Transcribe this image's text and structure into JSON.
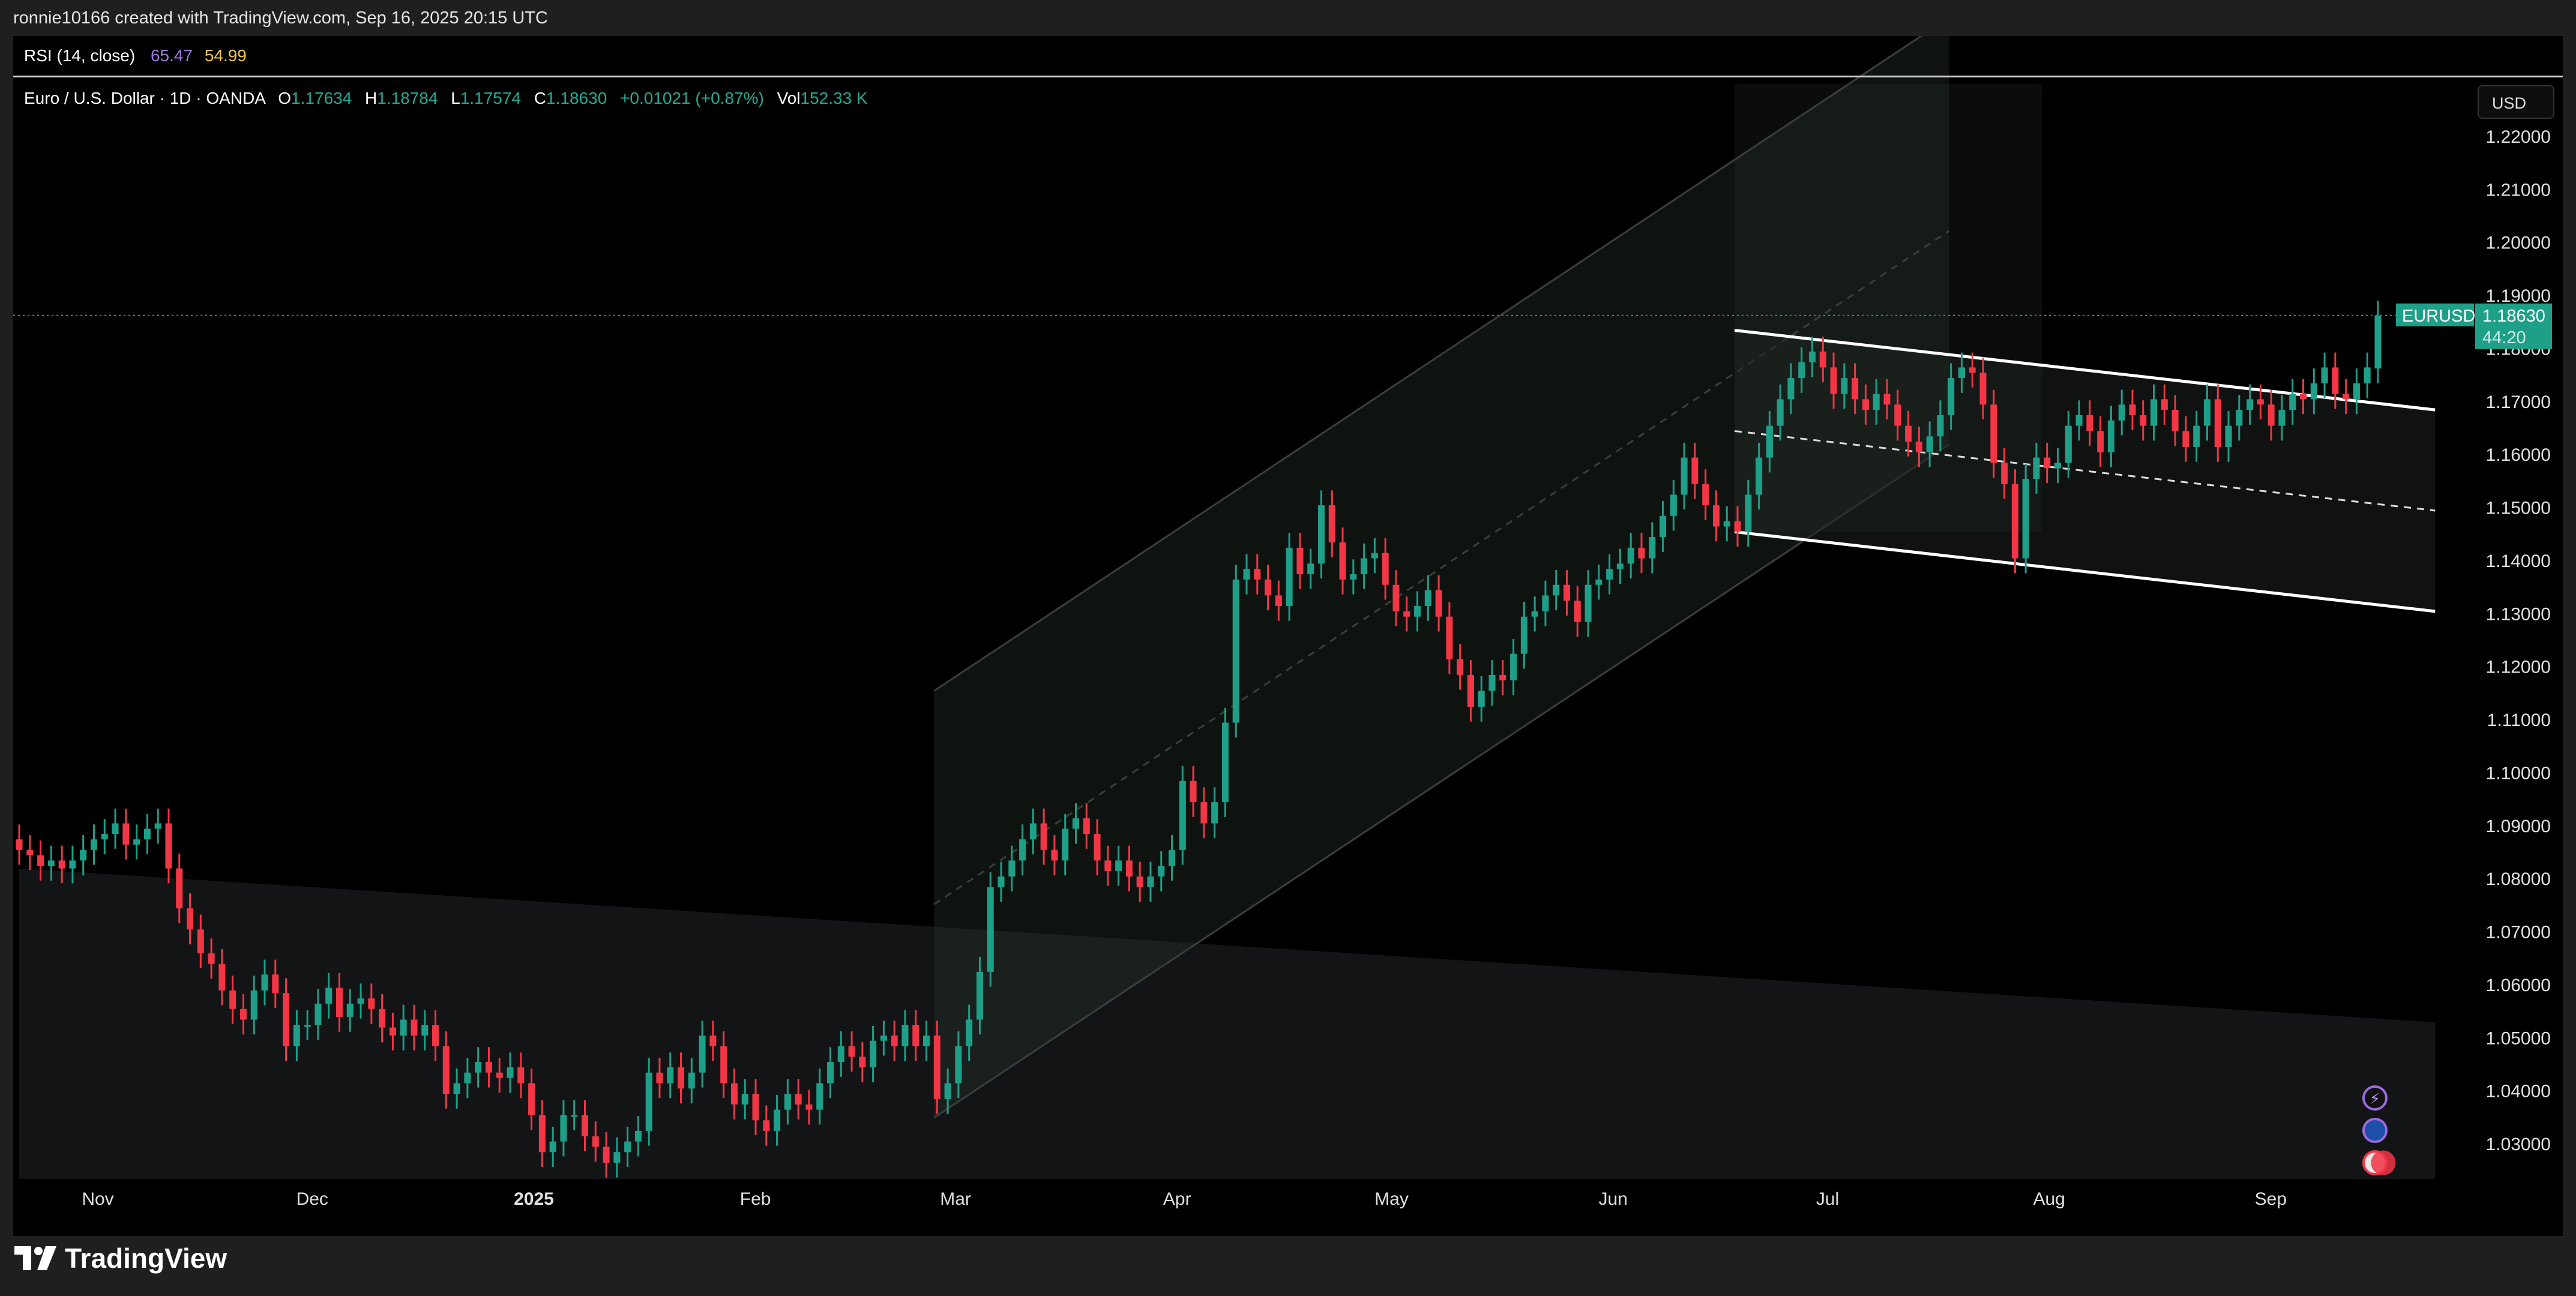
{
  "header": {
    "attribution": "ronnie10166 created with TradingView.com, Sep 16, 2025 20:15 UTC"
  },
  "rsi": {
    "title": "RSI (14, close)",
    "value1": "65.47",
    "value2": "54.99",
    "color1": "#9c7ad9",
    "color2": "#f2c744"
  },
  "legend": {
    "symbol": "Euro / U.S. Dollar · 1D · OANDA",
    "o_label": "O",
    "o_value": "1.17634",
    "h_label": "H",
    "h_value": "1.18784",
    "l_label": "L",
    "l_value": "1.17574",
    "c_label": "C",
    "c_value": "1.18630",
    "change": "+0.01021 (+0.87%)",
    "vol_label": "Vol",
    "vol_value": "152.33 K"
  },
  "currency_button": "USD",
  "price_tag": {
    "symbol": "EURUSD",
    "price": "1.18630",
    "countdown": "44:20",
    "color": "#1e9f88"
  },
  "logo": {
    "text": "TradingView",
    "icon": "tradingview-logo-icon"
  },
  "colors": {
    "up": "#1e9f88",
    "down": "#f23645",
    "background": "#000000",
    "frame": "#1f1f1f"
  },
  "event_icons": [
    "lightning-icon",
    "globe-icon",
    "us-flag-icon"
  ],
  "chart_data": {
    "type": "candlestick",
    "symbol": "EURUSD",
    "ylim": [
      1.02,
      1.23
    ],
    "y_ticks": [
      "1.22000",
      "1.21000",
      "1.20000",
      "1.19000",
      "1.18000",
      "1.17000",
      "1.16000",
      "1.15000",
      "1.14000",
      "1.13000",
      "1.12000",
      "1.11000",
      "1.10000",
      "1.09000",
      "1.08000",
      "1.07000",
      "1.06000",
      "1.05000",
      "1.04000",
      "1.03000"
    ],
    "x_ticks": [
      {
        "label": "Nov",
        "date": "2024-11-01",
        "bold": false
      },
      {
        "label": "Dec",
        "date": "2024-12-01",
        "bold": false
      },
      {
        "label": "2025",
        "date": "2025-01-01",
        "bold": true
      },
      {
        "label": "Feb",
        "date": "2025-02-01",
        "bold": false
      },
      {
        "label": "Mar",
        "date": "2025-03-01",
        "bold": false
      },
      {
        "label": "Apr",
        "date": "2025-04-01",
        "bold": false
      },
      {
        "label": "May",
        "date": "2025-05-01",
        "bold": false
      },
      {
        "label": "Jun",
        "date": "2025-06-01",
        "bold": false
      },
      {
        "label": "Jul",
        "date": "2025-07-01",
        "bold": false
      },
      {
        "label": "Aug",
        "date": "2025-08-01",
        "bold": false
      },
      {
        "label": "Sep",
        "date": "2025-09-01",
        "bold": false
      }
    ],
    "last_price": 1.1863,
    "closes": [
      1.0855,
      1.0845,
      1.0825,
      1.0835,
      1.082,
      1.0835,
      1.0855,
      1.0875,
      1.0885,
      1.0905,
      1.0865,
      1.0875,
      1.0895,
      1.0905,
      1.082,
      1.0745,
      1.0705,
      1.066,
      1.064,
      1.059,
      1.0555,
      1.0535,
      1.059,
      1.062,
      1.0585,
      1.0485,
      1.0525,
      1.0525,
      1.0565,
      1.0595,
      1.054,
      1.0565,
      1.0575,
      1.0555,
      1.052,
      1.0505,
      1.0535,
      1.0505,
      1.0525,
      1.0485,
      1.0395,
      1.0415,
      1.0435,
      1.0455,
      1.0435,
      1.0425,
      1.0445,
      1.0415,
      1.0355,
      1.0285,
      1.0305,
      1.0355,
      1.0355,
      1.0315,
      1.0295,
      1.0265,
      1.0285,
      1.0305,
      1.0325,
      1.0435,
      1.0415,
      1.0445,
      1.0405,
      1.0435,
      1.0505,
      1.0485,
      1.0415,
      1.0375,
      1.0395,
      1.0345,
      1.0325,
      1.0365,
      1.0395,
      1.0375,
      1.0365,
      1.0415,
      1.0455,
      1.0485,
      1.0465,
      1.0445,
      1.0495,
      1.0505,
      1.0485,
      1.0525,
      1.0485,
      1.0505,
      1.0385,
      1.0415,
      1.0485,
      1.0535,
      1.0625,
      1.0785,
      1.0805,
      1.0835,
      1.0875,
      1.0905,
      1.0855,
      1.0835,
      1.0895,
      1.0915,
      1.0885,
      1.0835,
      1.0815,
      1.0835,
      1.0805,
      1.0785,
      1.0805,
      1.0825,
      1.0855,
      1.0985,
      1.0945,
      1.0905,
      1.0945,
      1.1095,
      1.1365,
      1.1385,
      1.1365,
      1.1335,
      1.1315,
      1.1425,
      1.1375,
      1.1395,
      1.1505,
      1.1435,
      1.1365,
      1.1375,
      1.1405,
      1.1415,
      1.1355,
      1.1305,
      1.1295,
      1.1315,
      1.1345,
      1.1295,
      1.1215,
      1.1185,
      1.1125,
      1.1155,
      1.1185,
      1.1175,
      1.1225,
      1.1295,
      1.1305,
      1.1335,
      1.1355,
      1.1325,
      1.1285,
      1.1355,
      1.1365,
      1.1385,
      1.1395,
      1.1425,
      1.1405,
      1.1445,
      1.1485,
      1.1525,
      1.1595,
      1.1545,
      1.1505,
      1.1465,
      1.1475,
      1.1455,
      1.1525,
      1.1595,
      1.1655,
      1.1705,
      1.1745,
      1.1775,
      1.1795,
      1.1765,
      1.1715,
      1.1745,
      1.1705,
      1.1685,
      1.1715,
      1.1695,
      1.1655,
      1.1625,
      1.1605,
      1.1635,
      1.1675,
      1.1745,
      1.1765,
      1.1755,
      1.1695,
      1.1585,
      1.1545,
      1.1405,
      1.1555,
      1.1595,
      1.1575,
      1.1585,
      1.1655,
      1.1675,
      1.1645,
      1.1605,
      1.1665,
      1.1695,
      1.1675,
      1.1655,
      1.1705,
      1.1685,
      1.1645,
      1.1615,
      1.1655,
      1.1705,
      1.1615,
      1.1655,
      1.1685,
      1.1705,
      1.1695,
      1.1655,
      1.1685,
      1.1715,
      1.1705,
      1.1735,
      1.1765,
      1.1715,
      1.1705,
      1.1735,
      1.1765,
      1.1863
    ],
    "opens": [
      1.0875,
      1.0855,
      1.0845,
      1.0825,
      1.0835,
      1.082,
      1.0835,
      1.0855,
      1.0875,
      1.0885,
      1.0905,
      1.0865,
      1.0875,
      1.0895,
      1.0905,
      1.082,
      1.0745,
      1.0705,
      1.066,
      1.064,
      1.059,
      1.0555,
      1.0535,
      1.059,
      1.062,
      1.0585,
      1.0485,
      1.0525,
      1.0525,
      1.0565,
      1.0595,
      1.054,
      1.0565,
      1.0575,
      1.0555,
      1.052,
      1.0505,
      1.0535,
      1.0505,
      1.0525,
      1.0485,
      1.0395,
      1.0415,
      1.0435,
      1.0455,
      1.0435,
      1.0425,
      1.0445,
      1.0415,
      1.0355,
      1.0285,
      1.0305,
      1.0355,
      1.0355,
      1.0315,
      1.0295,
      1.0265,
      1.0285,
      1.0305,
      1.0325,
      1.0435,
      1.0415,
      1.0445,
      1.0405,
      1.0435,
      1.0505,
      1.0485,
      1.0415,
      1.0375,
      1.0395,
      1.0345,
      1.0325,
      1.0365,
      1.0395,
      1.0375,
      1.0365,
      1.0415,
      1.0455,
      1.0485,
      1.0465,
      1.0445,
      1.0495,
      1.0505,
      1.0485,
      1.0525,
      1.0485,
      1.0505,
      1.0385,
      1.0415,
      1.0485,
      1.0535,
      1.0625,
      1.0785,
      1.0805,
      1.0835,
      1.0875,
      1.0905,
      1.0855,
      1.0835,
      1.0895,
      1.0915,
      1.0885,
      1.0835,
      1.0815,
      1.0835,
      1.0805,
      1.0785,
      1.0805,
      1.0825,
      1.0855,
      1.0985,
      1.0945,
      1.0905,
      1.0945,
      1.1095,
      1.1365,
      1.1385,
      1.1365,
      1.1335,
      1.1315,
      1.1425,
      1.1375,
      1.1395,
      1.1505,
      1.1435,
      1.1365,
      1.1375,
      1.1405,
      1.1415,
      1.1355,
      1.1305,
      1.1295,
      1.1315,
      1.1345,
      1.1295,
      1.1215,
      1.1185,
      1.1125,
      1.1155,
      1.1185,
      1.1175,
      1.1225,
      1.1295,
      1.1305,
      1.1335,
      1.1355,
      1.1325,
      1.1285,
      1.1355,
      1.1365,
      1.1385,
      1.1395,
      1.1425,
      1.1405,
      1.1445,
      1.1485,
      1.1525,
      1.1595,
      1.1545,
      1.1505,
      1.1465,
      1.1475,
      1.1455,
      1.1525,
      1.1595,
      1.1655,
      1.1705,
      1.1745,
      1.1775,
      1.1795,
      1.1765,
      1.1715,
      1.1745,
      1.1705,
      1.1685,
      1.1715,
      1.1695,
      1.1655,
      1.1625,
      1.1605,
      1.1635,
      1.1675,
      1.1745,
      1.1765,
      1.1755,
      1.1695,
      1.1585,
      1.1545,
      1.1405,
      1.1555,
      1.1595,
      1.1575,
      1.1585,
      1.1655,
      1.1675,
      1.1645,
      1.1605,
      1.1665,
      1.1695,
      1.1675,
      1.1655,
      1.1705,
      1.1685,
      1.1645,
      1.1615,
      1.1655,
      1.1705,
      1.1615,
      1.1655,
      1.1685,
      1.1705,
      1.1695,
      1.1655,
      1.1685,
      1.1715,
      1.1705,
      1.1735,
      1.1765,
      1.1715,
      1.1705,
      1.1735,
      1.1763
    ],
    "start_date": "2024-10-21",
    "end_date": "2025-09-16",
    "drawings": [
      {
        "kind": "parallel-channel",
        "from": [
          "2025-02-26",
          1.035
        ],
        "to": [
          "2025-07-18",
          1.162
        ],
        "width": 0.0805
      },
      {
        "kind": "parallel-channel",
        "from": [
          "2025-06-18",
          1.1455
        ],
        "to": [
          "2025-09-24",
          1.1305
        ],
        "width": 0.038
      },
      {
        "kind": "shaded-zone",
        "from": [
          "2024-10-21",
          1.082
        ],
        "to": [
          "2025-09-24",
          1.053
        ]
      },
      {
        "kind": "shaded-zone",
        "from": [
          "2025-06-18",
          1.1855
        ],
        "to": [
          "2025-07-31",
          1.1855
        ]
      }
    ]
  }
}
